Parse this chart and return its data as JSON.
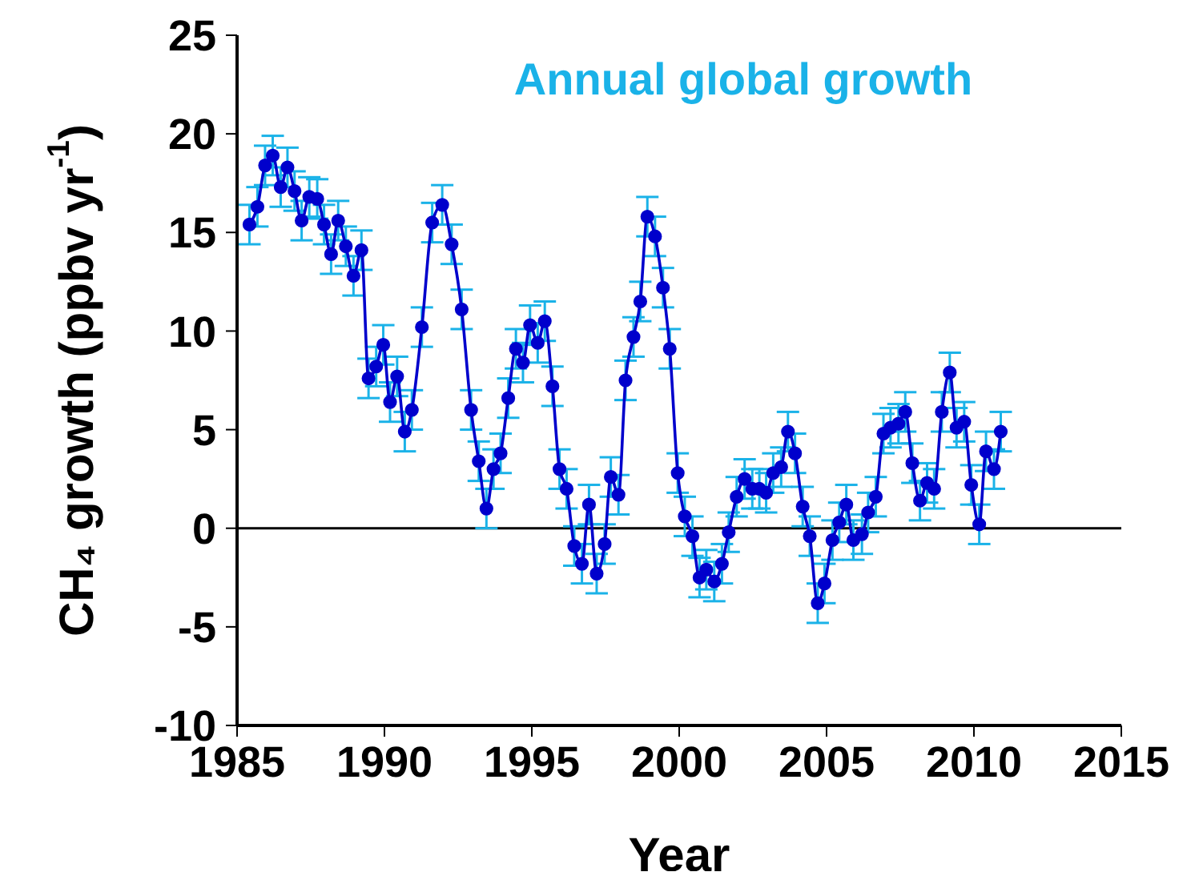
{
  "chart_data": {
    "type": "line",
    "title": "Annual global growth",
    "xlabel": "Year",
    "ylabel": "CH₄ growth (ppbv yr$^{-1}$)",
    "xlim": [
      1985,
      2015
    ],
    "xticks": [
      1985,
      1990,
      1995,
      2000,
      2005,
      2010,
      2015
    ],
    "ylim": [
      -10,
      25
    ],
    "yticks": [
      -10,
      -5,
      0,
      5,
      10,
      15,
      20,
      25
    ],
    "marker": "circle",
    "line_style": "solid",
    "ref_lines": [
      {
        "axis": "y",
        "value": 0,
        "color": "#000000"
      }
    ],
    "series": [
      {
        "color": "#0000cc",
        "x": [
          1985.42,
          1985.69,
          1985.95,
          1986.21,
          1986.48,
          1986.71,
          1986.95,
          1987.19,
          1987.45,
          1987.72,
          1987.95,
          1988.19,
          1988.43,
          1988.69,
          1988.95,
          1989.22,
          1989.46,
          1989.72,
          1989.96,
          1990.19,
          1990.43,
          1990.69,
          1990.93,
          1991.27,
          1991.62,
          1991.96,
          1992.28,
          1992.62,
          1992.94,
          1993.2,
          1993.46,
          1993.7,
          1993.94,
          1994.2,
          1994.46,
          1994.7,
          1994.94,
          1995.2,
          1995.44,
          1995.7,
          1995.94,
          1996.18,
          1996.44,
          1996.7,
          1996.94,
          1997.2,
          1997.47,
          1997.68,
          1997.94,
          1998.18,
          1998.45,
          1998.68,
          1998.92,
          1999.18,
          1999.45,
          1999.68,
          1999.95,
          2000.19,
          2000.45,
          2000.69,
          2000.92,
          2001.19,
          2001.45,
          2001.68,
          2001.95,
          2002.22,
          2002.48,
          2002.72,
          2002.95,
          2003.19,
          2003.46,
          2003.69,
          2003.93,
          2004.19,
          2004.43,
          2004.7,
          2004.93,
          2005.2,
          2005.43,
          2005.67,
          2005.91,
          2006.2,
          2006.41,
          2006.67,
          2006.93,
          2007.17,
          2007.44,
          2007.67,
          2007.91,
          2008.17,
          2008.41,
          2008.65,
          2008.91,
          2009.18,
          2009.41,
          2009.67,
          2009.91,
          2010.18,
          2010.41,
          2010.68,
          2010.91
        ],
        "values": [
          15.4,
          16.3,
          18.4,
          18.9,
          17.3,
          18.3,
          17.1,
          15.6,
          16.8,
          16.7,
          15.4,
          13.9,
          15.6,
          14.3,
          12.8,
          14.1,
          7.6,
          8.2,
          9.3,
          6.4,
          7.7,
          4.9,
          6.0,
          10.2,
          15.5,
          16.4,
          14.4,
          11.1,
          6.0,
          3.4,
          1.0,
          3.0,
          3.8,
          6.6,
          9.1,
          8.4,
          10.3,
          9.4,
          10.5,
          7.2,
          3.0,
          2.0,
          -0.9,
          -1.8,
          1.2,
          -2.3,
          -0.8,
          2.6,
          1.7,
          7.5,
          9.7,
          11.5,
          15.8,
          14.8,
          12.2,
          9.1,
          2.8,
          0.6,
          -0.4,
          -2.5,
          -2.1,
          -2.7,
          -1.8,
          -0.2,
          1.6,
          2.5,
          2.0,
          2.0,
          1.8,
          2.8,
          3.1,
          4.9,
          3.8,
          1.1,
          -0.4,
          -3.8,
          -2.8,
          -0.6,
          0.3,
          1.2,
          -0.6,
          -0.3,
          0.8,
          1.6,
          4.8,
          5.1,
          5.3,
          5.9,
          3.3,
          1.4,
          2.3,
          2.0,
          5.9,
          7.9,
          5.1,
          5.4,
          2.2,
          0.2,
          3.9,
          3.0,
          4.9
        ],
        "errors": [
          1,
          1,
          1,
          1,
          1,
          1,
          1,
          1,
          1,
          1,
          1,
          1,
          1,
          1,
          1,
          1,
          1,
          1,
          1,
          1,
          1,
          1,
          1,
          1,
          1,
          1,
          1,
          1,
          1,
          1,
          1,
          1,
          1,
          1,
          1,
          1,
          1,
          1,
          1,
          1,
          1,
          1,
          1,
          1,
          1,
          1,
          1,
          1,
          1,
          1,
          1,
          1,
          1,
          1,
          1,
          1,
          1,
          1,
          1,
          1,
          1,
          1,
          1,
          1,
          1,
          1,
          1,
          1,
          1,
          1,
          1,
          1,
          1,
          1,
          1,
          1,
          1,
          1,
          1,
          1,
          1,
          1,
          1,
          1,
          1,
          1,
          1,
          1,
          1,
          1,
          1,
          1,
          1,
          1,
          1,
          1,
          1,
          1,
          1,
          1,
          1
        ]
      }
    ]
  }
}
